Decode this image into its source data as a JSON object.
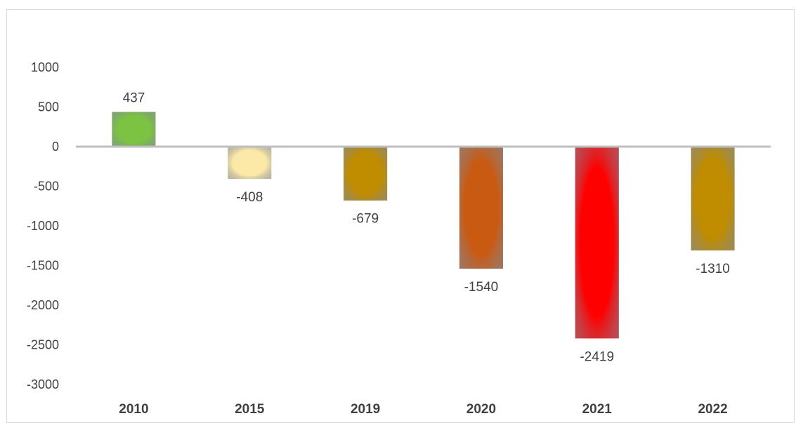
{
  "chart_data": {
    "type": "bar",
    "categories": [
      "2010",
      "2015",
      "2019",
      "2020",
      "2021",
      "2022"
    ],
    "values": [
      437,
      -408,
      -679,
      -1540,
      -2419,
      -1310
    ],
    "data_labels": [
      "437",
      "-408",
      "-679",
      "-1540",
      "-2419",
      "-1310"
    ],
    "bar_colors": [
      "#7cc243",
      "#fde9a7",
      "#c08c00",
      "#c95a12",
      "#ff0000",
      "#c08c00"
    ],
    "ylim": [
      -3000,
      1000
    ],
    "yticks": [
      1000,
      500,
      0,
      -500,
      -1000,
      -1500,
      -2000,
      -2500,
      -3000
    ],
    "ytick_labels": [
      "1000",
      "500",
      "0",
      "-500",
      "-1000",
      "-1500",
      "-2000",
      "-2500",
      "-3000"
    ],
    "grid": false,
    "legend": "none",
    "zero_line_color": "#bfbfbf",
    "label_color": "#404040"
  }
}
